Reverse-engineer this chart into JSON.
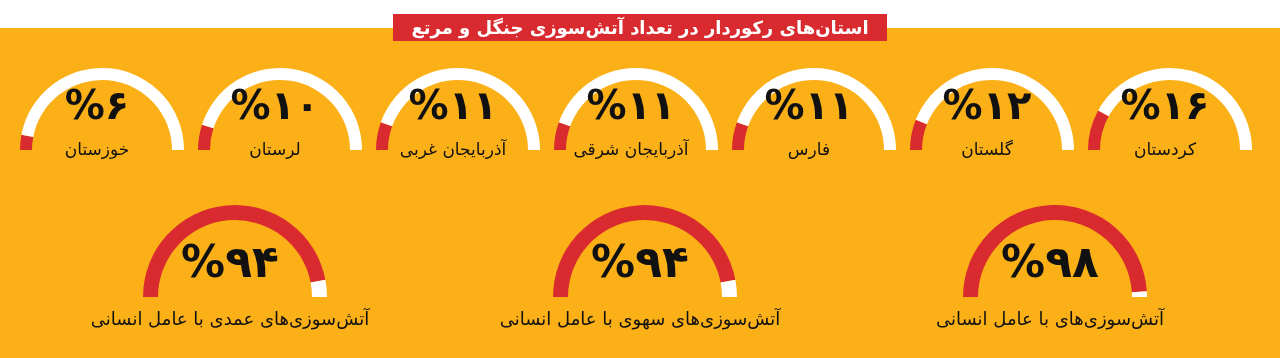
{
  "chart_data": [
    {
      "type": "other",
      "title": "استان‌های رکوردار در تعداد آتش‌سوزی جنگل و مرتع"
    },
    {
      "type": "donut",
      "title": "کردستان",
      "categories": [
        null,
        null
      ],
      "values": [
        16,
        84
      ],
      "colors": [
        "#d92b2f",
        "#ffffff"
      ],
      "annotations": [
        "%۱۶"
      ]
    },
    {
      "type": "donut",
      "title": "گلستان",
      "categories": [
        null,
        null
      ],
      "values": [
        12,
        88
      ],
      "colors": [
        "#d92b2f",
        "#ffffff"
      ],
      "annotations": [
        "%۱۲"
      ]
    },
    {
      "type": "donut",
      "title": "فارس",
      "categories": [
        null,
        null
      ],
      "values": [
        11,
        89
      ],
      "colors": [
        "#d92b2f",
        "#ffffff"
      ],
      "annotations": [
        "%۱۱"
      ]
    },
    {
      "type": "donut",
      "title": "آذربایجان شرقی",
      "categories": [
        null,
        null
      ],
      "values": [
        11,
        89
      ],
      "colors": [
        "#d92b2f",
        "#ffffff"
      ],
      "annotations": [
        "%۱۱"
      ]
    },
    {
      "type": "donut",
      "title": "آذربایجان غربی",
      "categories": [
        null,
        null
      ],
      "values": [
        11,
        89
      ],
      "colors": [
        "#d92b2f",
        "#ffffff"
      ],
      "annotations": [
        "%۱۱"
      ]
    },
    {
      "type": "donut",
      "title": "لرستان",
      "categories": [
        null,
        null
      ],
      "values": [
        10,
        90
      ],
      "colors": [
        "#d92b2f",
        "#ffffff"
      ],
      "annotations": [
        "%۱۰"
      ]
    },
    {
      "type": "donut",
      "title": "خوزستان",
      "categories": [
        null,
        null
      ],
      "values": [
        6,
        94
      ],
      "colors": [
        "#d92b2f",
        "#ffffff"
      ],
      "annotations": [
        "%۶"
      ]
    },
    {
      "type": "donut",
      "title": "آتش‌سوزی‌های با عامل انسانی",
      "categories": [
        null,
        null
      ],
      "values": [
        98,
        2
      ],
      "colors": [
        "#d92b2f",
        "#ffffff"
      ],
      "annotations": [
        "%۹۸"
      ]
    },
    {
      "type": "donut",
      "title": "آتش‌سوزی‌های سهوی با عامل انسانی",
      "categories": [
        null,
        null
      ],
      "values": [
        94,
        6
      ],
      "colors": [
        "#d92b2f",
        "#ffffff"
      ],
      "annotations": [
        "%۹۴"
      ]
    },
    {
      "type": "donut",
      "title": "آتش‌سوزی‌های عمدی با عامل انسانی",
      "categories": [
        null,
        null
      ],
      "values": [
        94,
        6
      ],
      "colors": [
        "#d92b2f",
        "#ffffff"
      ],
      "annotations": [
        "%۹۴"
      ]
    }
  ]
}
